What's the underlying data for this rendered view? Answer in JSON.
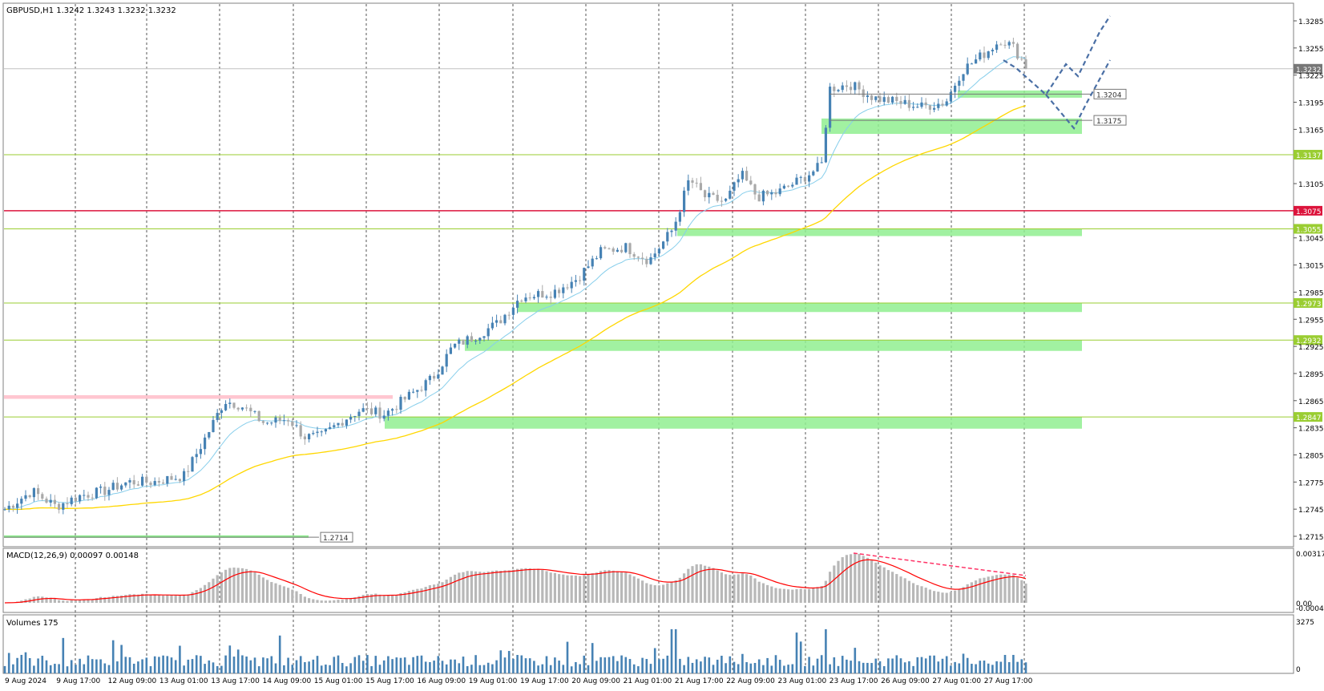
{
  "main_title": "GBPUSD,H1  1.3242 1.3243 1.3232 1.3232",
  "macd_title": "MACD(12,26,9) 0.00097 0.00148",
  "volumes_title": "Volumes 175",
  "price_axis_labels": [
    "1.3285",
    "1.3255",
    "1.3225",
    "1.3195",
    "1.3165",
    "1.3105",
    "1.3045",
    "1.3015",
    "1.2985",
    "1.2955",
    "1.2925",
    "1.2895",
    "1.2865",
    "1.2835",
    "1.2805",
    "1.2775",
    "1.2745",
    "1.2715"
  ],
  "macd_axis_labels": [
    "0.00317",
    "0.00",
    "-0.00043"
  ],
  "volume_axis_labels": [
    "3275",
    "0"
  ],
  "time_labels": [
    "9 Aug 2024",
    "9 Aug 17:00",
    "12 Aug 09:00",
    "13 Aug 01:00",
    "13 Aug 17:00",
    "14 Aug 09:00",
    "15 Aug 01:00",
    "15 Aug 17:00",
    "16 Aug 09:00",
    "19 Aug 01:00",
    "19 Aug 17:00",
    "20 Aug 09:00",
    "21 Aug 01:00",
    "21 Aug 17:00",
    "22 Aug 09:00",
    "23 Aug 01:00",
    "23 Aug 17:00",
    "26 Aug 09:00",
    "27 Aug 01:00",
    "27 Aug 17:00"
  ],
  "current_price_tag": "1.3232",
  "level_tags": [
    {
      "label": "1.3137",
      "price": 1.3137,
      "color": "#9acd32"
    },
    {
      "label": "1.3075",
      "price": 1.3075,
      "color": "#dc143c"
    },
    {
      "label": "1.3055",
      "price": 1.3055,
      "color": "#9acd32"
    },
    {
      "label": "1.2973",
      "price": 1.2973,
      "color": "#9acd32"
    },
    {
      "label": "1.2932",
      "price": 1.2932,
      "color": "#9acd32"
    },
    {
      "label": "1.2847",
      "price": 1.2847,
      "color": "#9acd32"
    }
  ],
  "annotation_labels": [
    {
      "label": "1.3204",
      "price": 1.3204
    },
    {
      "label": "1.3175",
      "price": 1.3175
    },
    {
      "label": "1.2714",
      "price": 1.2714
    }
  ],
  "colors": {
    "bull_candle": "#4682b4",
    "bear_candle": "#a9a9a9",
    "ma_fast": "#87ceeb",
    "ma_slow": "#ffd700",
    "macd_signal": "#ff0000",
    "support_zone": "#90ee90",
    "resistance_zone": "#ffc0cb",
    "forecast": "#4a6fa5",
    "divergence": "#ff3366"
  }
}
